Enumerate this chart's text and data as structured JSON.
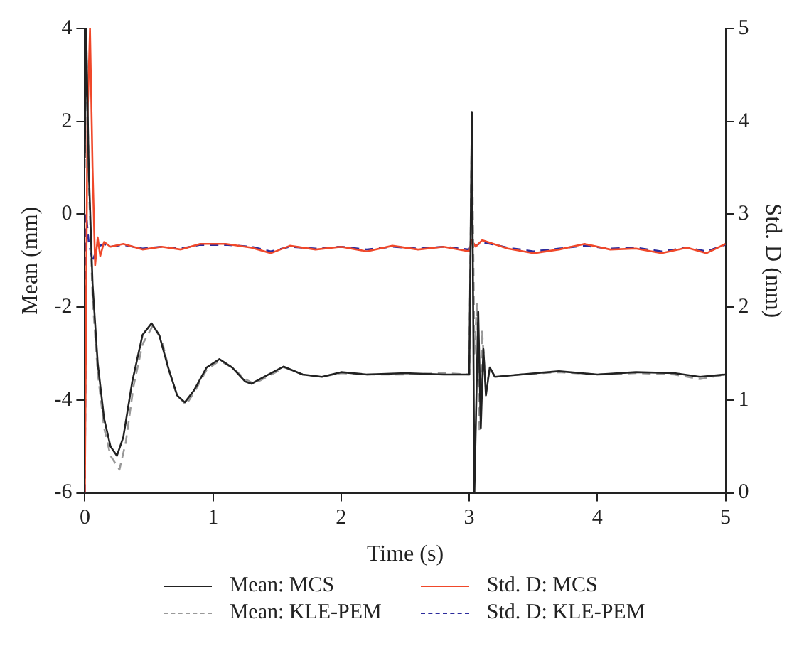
{
  "chart_data": {
    "type": "line",
    "xlabel": "Time (s)",
    "ylabel": "Mean (mm)",
    "y2label": "Std. D (mm)",
    "xlim": [
      0,
      5
    ],
    "xticks": [
      0,
      1,
      2,
      3,
      4,
      5
    ],
    "ylim": [
      -6,
      4
    ],
    "yticks": [
      -6,
      -4,
      -2,
      0,
      2,
      4
    ],
    "y2lim": [
      0,
      5
    ],
    "y2ticks": [
      0,
      1,
      2,
      3,
      4,
      5
    ],
    "grid": false,
    "legend": "bottom",
    "marker": "none",
    "series": [
      {
        "name": "Mean: MCS",
        "color": "#222222",
        "line_style": "solid",
        "x": [
          0,
          0.01,
          0.03,
          0.06,
          0.1,
          0.15,
          0.2,
          0.25,
          0.3,
          0.37,
          0.45,
          0.52,
          0.58,
          0.65,
          0.72,
          0.78,
          0.85,
          0.95,
          1.05,
          1.15,
          1.25,
          1.3,
          1.4,
          1.55,
          1.7,
          1.85,
          2.0,
          2.2,
          2.5,
          2.8,
          3.0,
          3.02,
          3.04,
          3.07,
          3.09,
          3.11,
          3.13,
          3.16,
          3.2,
          3.4,
          3.7,
          4.0,
          4.3,
          4.6,
          4.8,
          5.0
        ],
        "values": [
          1.2,
          4.0,
          1.0,
          -1.5,
          -3.2,
          -4.4,
          -5.0,
          -5.2,
          -4.8,
          -3.6,
          -2.6,
          -2.35,
          -2.6,
          -3.3,
          -3.9,
          -4.05,
          -3.8,
          -3.3,
          -3.12,
          -3.3,
          -3.6,
          -3.65,
          -3.5,
          -3.28,
          -3.45,
          -3.5,
          -3.4,
          -3.45,
          -3.42,
          -3.45,
          -3.45,
          2.2,
          -6.0,
          -2.1,
          -4.6,
          -2.9,
          -3.9,
          -3.3,
          -3.5,
          -3.45,
          -3.38,
          -3.45,
          -3.4,
          -3.42,
          -3.5,
          -3.45
        ]
      },
      {
        "name": "Mean: KLE-PEM",
        "color": "#999999",
        "line_style": "dashed",
        "x": [
          0,
          0.01,
          0.03,
          0.06,
          0.1,
          0.15,
          0.2,
          0.27,
          0.32,
          0.38,
          0.45,
          0.53,
          0.6,
          0.66,
          0.72,
          0.79,
          0.86,
          0.95,
          1.05,
          1.15,
          1.25,
          1.32,
          1.42,
          1.56,
          1.7,
          1.85,
          2.0,
          2.2,
          2.5,
          2.8,
          3.0,
          3.02,
          3.04,
          3.06,
          3.08,
          3.1,
          3.13,
          3.16,
          3.2,
          3.4,
          3.7,
          4.0,
          4.3,
          4.6,
          4.8,
          5.0
        ],
        "values": [
          1.0,
          4.0,
          0.8,
          -1.8,
          -3.4,
          -4.6,
          -5.2,
          -5.5,
          -4.9,
          -3.7,
          -2.8,
          -2.4,
          -2.7,
          -3.4,
          -3.9,
          -4.1,
          -3.8,
          -3.35,
          -3.15,
          -3.3,
          -3.55,
          -3.65,
          -3.5,
          -3.3,
          -3.45,
          -3.5,
          -3.42,
          -3.45,
          -3.45,
          -3.42,
          -3.45,
          2.1,
          -3.0,
          -1.9,
          -4.7,
          -2.5,
          -3.8,
          -3.3,
          -3.5,
          -3.45,
          -3.4,
          -3.45,
          -3.42,
          -3.45,
          -3.55,
          -3.45
        ]
      },
      {
        "name": "Std. D: MCS",
        "color": "#f0482a",
        "line_style": "solid",
        "axis": "y2",
        "x": [
          0,
          0.02,
          0.04,
          0.06,
          0.08,
          0.1,
          0.12,
          0.15,
          0.2,
          0.3,
          0.45,
          0.6,
          0.75,
          0.9,
          1.1,
          1.3,
          1.45,
          1.6,
          1.8,
          2.0,
          2.2,
          2.4,
          2.6,
          2.8,
          3.0,
          3.02,
          3.05,
          3.1,
          3.3,
          3.5,
          3.7,
          3.9,
          4.1,
          4.3,
          4.5,
          4.7,
          4.85,
          5.0
        ],
        "values": [
          0,
          4.0,
          5.0,
          3.5,
          2.45,
          2.75,
          2.55,
          2.7,
          2.65,
          2.68,
          2.62,
          2.65,
          2.62,
          2.68,
          2.68,
          2.64,
          2.58,
          2.66,
          2.62,
          2.65,
          2.6,
          2.66,
          2.62,
          2.65,
          2.6,
          2.72,
          2.65,
          2.72,
          2.63,
          2.58,
          2.62,
          2.68,
          2.62,
          2.63,
          2.58,
          2.64,
          2.58,
          2.68
        ]
      },
      {
        "name": "Std. D: KLE-PEM",
        "color": "#2b2b9c",
        "line_style": "dashed",
        "axis": "y2",
        "x": [
          0,
          0.01,
          0.03,
          0.06,
          0.1,
          0.15,
          0.2,
          0.3,
          0.45,
          0.6,
          0.75,
          0.9,
          1.1,
          1.3,
          1.45,
          1.6,
          1.8,
          2.0,
          2.2,
          2.4,
          2.6,
          2.8,
          3.0,
          3.02,
          3.05,
          3.1,
          3.3,
          3.5,
          3.7,
          3.9,
          4.1,
          4.3,
          4.5,
          4.7,
          4.85,
          5.0
        ],
        "values": [
          0,
          3.0,
          2.7,
          2.5,
          2.65,
          2.68,
          2.65,
          2.67,
          2.63,
          2.65,
          2.63,
          2.67,
          2.67,
          2.65,
          2.6,
          2.65,
          2.63,
          2.65,
          2.62,
          2.65,
          2.63,
          2.65,
          2.62,
          2.7,
          2.66,
          2.7,
          2.64,
          2.6,
          2.63,
          2.66,
          2.63,
          2.64,
          2.6,
          2.64,
          2.6,
          2.67
        ]
      }
    ]
  }
}
